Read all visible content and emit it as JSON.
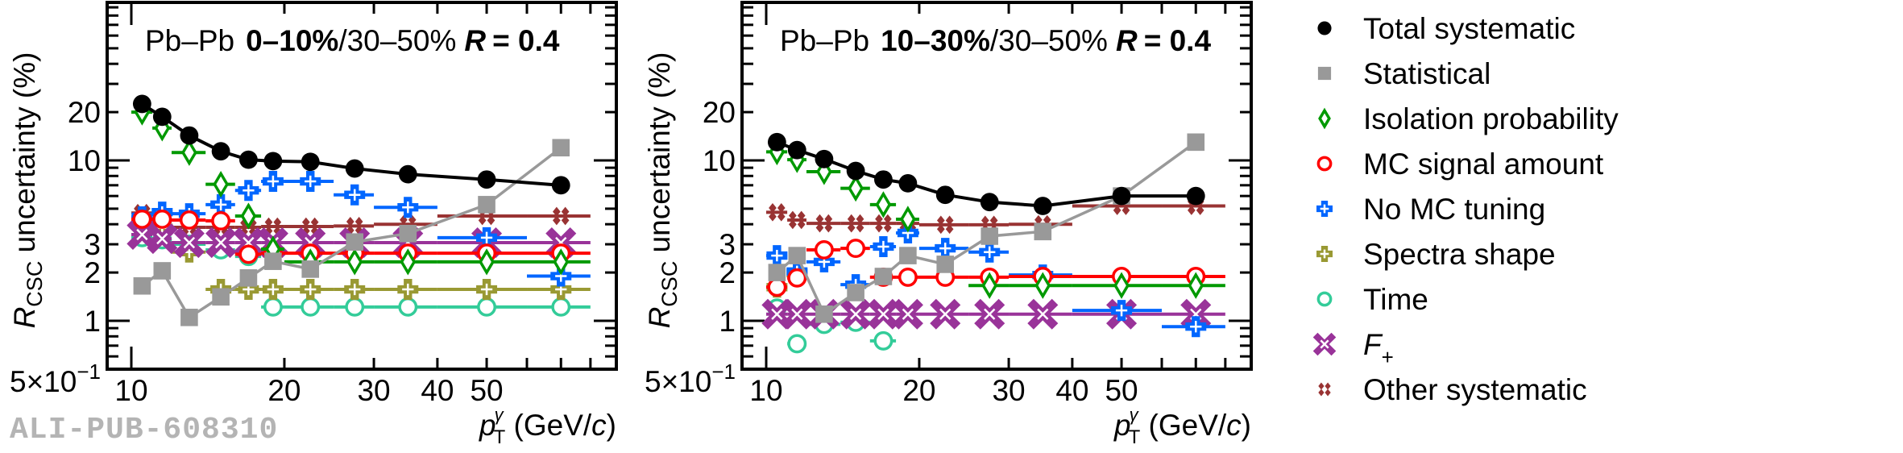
{
  "chart_data": [
    {
      "type": "scatter",
      "panel": "left",
      "title": {
        "system": "Pb–Pb",
        "centrality_bold": "0–10%",
        "reference": "/30–50%",
        "radius_symbol": "R",
        "radius_value": "= 0.4"
      },
      "xlabel": "p_T^γ (GeV/c)",
      "ylabel": "R_CSC uncertainty (%)",
      "xscale": "log",
      "yscale": "log",
      "xlim": [
        9,
        90
      ],
      "ylim": [
        0.5,
        97
      ],
      "x_tick_labels": [
        "10",
        "20",
        "30",
        "40",
        "50"
      ],
      "y_tick_labels": [
        "5×10⁻¹",
        "1",
        "2",
        "3",
        "10",
        "20"
      ],
      "bins": [
        [
          10,
          11
        ],
        [
          11,
          12
        ],
        [
          12,
          14
        ],
        [
          14,
          16
        ],
        [
          16,
          18
        ],
        [
          18,
          20
        ],
        [
          20,
          25
        ],
        [
          25,
          30
        ],
        [
          30,
          40
        ],
        [
          40,
          60
        ],
        [
          60,
          80
        ]
      ],
      "x": [
        10.5,
        11.5,
        13,
        15,
        17,
        19,
        22.5,
        27.5,
        35,
        50,
        70
      ],
      "series": [
        {
          "name": "Total systematic",
          "key": "total",
          "values": [
            22.5,
            18.7,
            14.3,
            11.4,
            10.1,
            9.9,
            9.8,
            8.9,
            8.2,
            7.6,
            7.0
          ]
        },
        {
          "name": "Statistical",
          "key": "stat",
          "values": [
            1.65,
            2.05,
            1.05,
            1.41,
            1.85,
            2.35,
            2.1,
            3.1,
            3.5,
            5.3,
            12.0
          ]
        },
        {
          "name": "Isolation probability",
          "key": "iso",
          "values": [
            20.0,
            15.9,
            11.2,
            7.1,
            4.5,
            2.8,
            2.33,
            2.33,
            2.33,
            2.33,
            2.33
          ]
        },
        {
          "name": "MC signal amount",
          "key": "mcsig",
          "values": [
            4.3,
            4.3,
            4.25,
            4.2,
            2.6,
            2.64,
            2.64,
            2.64,
            2.64,
            2.64,
            2.64
          ]
        },
        {
          "name": "No MC tuning",
          "key": "nomc",
          "values": [
            4.45,
            4.76,
            4.65,
            5.3,
            6.5,
            7.4,
            7.4,
            6.1,
            5.1,
            3.3,
            1.9
          ]
        },
        {
          "name": "Spectra shape",
          "key": "spectra",
          "values": [
            4.2,
            3.8,
            2.68,
            1.57,
            1.57,
            1.57,
            1.57,
            1.57,
            1.57,
            1.57,
            1.57
          ]
        },
        {
          "name": "Time",
          "key": "time",
          "values": [
            3.3,
            3.2,
            3.0,
            2.77,
            2.52,
            1.22,
            1.22,
            1.22,
            1.22,
            1.22,
            1.22
          ]
        },
        {
          "name": "F+",
          "key": "fplus",
          "values": [
            3.45,
            3.25,
            3.07,
            3.07,
            3.07,
            3.07,
            3.07,
            3.07,
            3.07,
            3.07,
            3.07
          ]
        },
        {
          "name": "Other systematic",
          "key": "other",
          "values": [
            4.7,
            4.15,
            3.83,
            3.83,
            3.83,
            3.87,
            3.87,
            3.9,
            4.0,
            4.5,
            4.5
          ]
        }
      ]
    },
    {
      "type": "scatter",
      "panel": "right",
      "title": {
        "system": "Pb–Pb",
        "centrality_bold": "10–30%",
        "reference": "/30–50%",
        "radius_symbol": "R",
        "radius_value": "= 0.4"
      },
      "xlabel": "p_T^γ (GeV/c)",
      "ylabel": "R_CSC uncertainty (%)",
      "xscale": "log",
      "yscale": "log",
      "xlim": [
        9,
        90
      ],
      "ylim": [
        0.5,
        97
      ],
      "x_tick_labels": [
        "10",
        "20",
        "30",
        "40",
        "50"
      ],
      "y_tick_labels": [
        "5×10⁻¹",
        "1",
        "2",
        "3",
        "10",
        "20"
      ],
      "bins": [
        [
          10,
          11
        ],
        [
          11,
          12
        ],
        [
          12,
          14
        ],
        [
          14,
          16
        ],
        [
          16,
          18
        ],
        [
          18,
          20
        ],
        [
          20,
          25
        ],
        [
          25,
          30
        ],
        [
          30,
          40
        ],
        [
          40,
          60
        ],
        [
          60,
          80
        ]
      ],
      "x": [
        10.5,
        11.5,
        13,
        15,
        17,
        19,
        22.5,
        27.5,
        35,
        50,
        70
      ],
      "series": [
        {
          "name": "Total systematic",
          "key": "total",
          "values": [
            13.0,
            11.6,
            10.2,
            8.6,
            7.6,
            7.2,
            6.1,
            5.5,
            5.2,
            6.0,
            6.0
          ]
        },
        {
          "name": "Statistical",
          "key": "stat",
          "values": [
            2.0,
            2.55,
            1.1,
            1.5,
            1.89,
            2.55,
            2.25,
            3.37,
            3.6,
            6.0,
            13.0
          ]
        },
        {
          "name": "Isolation probability",
          "key": "iso",
          "values": [
            11.3,
            10.1,
            8.5,
            6.7,
            5.3,
            4.3,
            null,
            1.66,
            1.66,
            1.66,
            1.66
          ]
        },
        {
          "name": "MC signal amount",
          "key": "mcsig",
          "values": [
            1.62,
            1.85,
            2.77,
            2.83,
            1.87,
            1.87,
            1.87,
            1.87,
            1.89,
            1.89,
            1.89
          ]
        },
        {
          "name": "No MC tuning",
          "key": "nomc",
          "values": [
            2.55,
            2.03,
            2.33,
            1.68,
            2.9,
            3.53,
            2.83,
            2.68,
            1.93,
            1.16,
            0.92
          ]
        },
        {
          "name": "Spectra shape",
          "key": "spectra",
          "values": [
            1.62,
            1.98,
            null,
            null,
            null,
            null,
            null,
            null,
            null,
            null,
            null
          ]
        },
        {
          "name": "Time",
          "key": "time",
          "values": [
            1.2,
            0.72,
            0.95,
            0.98,
            0.75,
            null,
            null,
            null,
            null,
            null,
            null
          ]
        },
        {
          "name": "F+",
          "key": "fplus",
          "values": [
            1.1,
            1.1,
            1.1,
            1.1,
            1.1,
            1.1,
            1.1,
            1.1,
            1.1,
            1.1,
            1.1
          ]
        },
        {
          "name": "Other systematic",
          "key": "other",
          "values": [
            4.75,
            4.25,
            4.05,
            4.05,
            4.05,
            4.05,
            3.97,
            3.97,
            4.0,
            5.2,
            5.2
          ]
        }
      ]
    }
  ],
  "styles": {
    "total": {
      "color": "#000000",
      "marker": "filled-circle",
      "connected": true
    },
    "stat": {
      "color": "#999999",
      "marker": "filled-square",
      "connected": true
    },
    "iso": {
      "color": "#009900",
      "marker": "open-diamond",
      "connected": false
    },
    "mcsig": {
      "color": "#ff0000",
      "marker": "open-circle",
      "connected": false
    },
    "nomc": {
      "color": "#0066ff",
      "marker": "open-cross",
      "connected": false
    },
    "spectra": {
      "color": "#999933",
      "marker": "open-cross",
      "connected": false
    },
    "time": {
      "color": "#33cc99",
      "marker": "open-circle",
      "connected": false
    },
    "fplus": {
      "color": "#993399",
      "marker": "open-x",
      "connected": false
    },
    "other": {
      "color": "#993333",
      "marker": "double-diamond",
      "connected": false
    }
  },
  "legend": {
    "placement": "right",
    "entries": [
      {
        "key": "total",
        "label": "Total systematic"
      },
      {
        "key": "stat",
        "label": "Statistical"
      },
      {
        "key": "iso",
        "label": "Isolation probability"
      },
      {
        "key": "mcsig",
        "label": "MC signal amount"
      },
      {
        "key": "nomc",
        "label": "No MC tuning"
      },
      {
        "key": "spectra",
        "label": "Spectra shape"
      },
      {
        "key": "time",
        "label": "Time"
      },
      {
        "key": "fplus",
        "label": "F",
        "subscript": "+"
      },
      {
        "key": "other",
        "label": "Other systematic"
      }
    ]
  },
  "axis_text": {
    "ylabel_main": "R",
    "ylabel_sub": "CSC",
    "ylabel_rest": " uncertainty (%)",
    "xlabel_p": "p",
    "xlabel_sup": "γ",
    "xlabel_sub": "T",
    "xlabel_unit_open": " (GeV/",
    "xlabel_unit_c": "c",
    "xlabel_unit_close": ")",
    "ytick_half_mant": "5×10",
    "ytick_half_exp": "−1"
  },
  "watermark": "ALI-PUB-608310"
}
